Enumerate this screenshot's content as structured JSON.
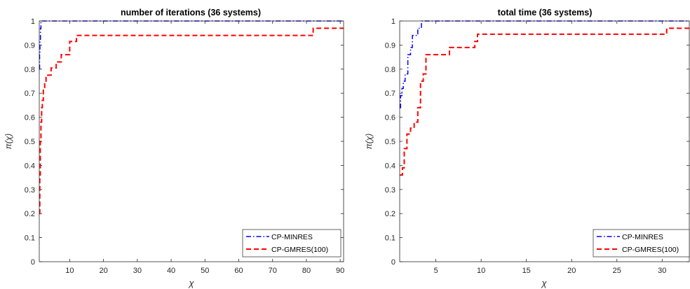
{
  "chart_data": [
    {
      "type": "line",
      "title": "number of iterations (36 systems)",
      "xlabel": "χ",
      "ylabel": "π(χ)",
      "xlim": [
        1,
        91
      ],
      "ylim": [
        0,
        1
      ],
      "xticks": [
        10,
        20,
        30,
        40,
        50,
        60,
        70,
        80,
        90
      ],
      "yticks": [
        0,
        0.1,
        0.2,
        0.3,
        0.4,
        0.5,
        0.6,
        0.7,
        0.8,
        0.9,
        1
      ],
      "grid": false,
      "legend_position": "bottom-right",
      "series": [
        {
          "name": "CP-MINRES",
          "color": "#0000ff",
          "style": "dash-dot",
          "points": [
            [
              1,
              0.8
            ],
            [
              1.1,
              0.86
            ],
            [
              1.2,
              0.92
            ],
            [
              1.35,
              0.97
            ],
            [
              1.5,
              1.0
            ],
            [
              91,
              1.0
            ]
          ]
        },
        {
          "name": "CP-GMRES(100)",
          "color": "#ff0000",
          "style": "dashed",
          "points": [
            [
              1,
              0.2
            ],
            [
              1.15,
              0.36
            ],
            [
              1.3,
              0.5
            ],
            [
              1.5,
              0.58
            ],
            [
              1.7,
              0.64
            ],
            [
              1.9,
              0.67
            ],
            [
              2.2,
              0.72
            ],
            [
              2.6,
              0.75
            ],
            [
              3.0,
              0.775
            ],
            [
              4.5,
              0.805
            ],
            [
              6.0,
              0.83
            ],
            [
              7.5,
              0.86
            ],
            [
              10,
              0.915
            ],
            [
              12,
              0.94
            ],
            [
              82,
              0.97
            ],
            [
              91,
              0.97
            ]
          ]
        }
      ]
    },
    {
      "type": "line",
      "title": "total time (36 systems)",
      "xlabel": "χ",
      "ylabel": "π(χ)",
      "xlim": [
        1,
        33
      ],
      "ylim": [
        0,
        1
      ],
      "xticks": [
        5,
        10,
        15,
        20,
        25,
        30
      ],
      "yticks": [
        0,
        0.1,
        0.2,
        0.3,
        0.4,
        0.5,
        0.6,
        0.7,
        0.8,
        0.9,
        1
      ],
      "grid": false,
      "legend_position": "bottom-right",
      "series": [
        {
          "name": "CP-MINRES",
          "color": "#0000ff",
          "style": "dash-dot",
          "points": [
            [
              1,
              0.64
            ],
            [
              1.1,
              0.69
            ],
            [
              1.25,
              0.72
            ],
            [
              1.4,
              0.75
            ],
            [
              1.6,
              0.78
            ],
            [
              1.9,
              0.86
            ],
            [
              2.2,
              0.89
            ],
            [
              2.4,
              0.94
            ],
            [
              3.0,
              0.97
            ],
            [
              3.4,
              1.0
            ],
            [
              33,
              1.0
            ]
          ]
        },
        {
          "name": "CP-GMRES(100)",
          "color": "#ff0000",
          "style": "dashed",
          "points": [
            [
              1,
              0.36
            ],
            [
              1.3,
              0.39
            ],
            [
              1.5,
              0.47
            ],
            [
              1.8,
              0.53
            ],
            [
              2.2,
              0.555
            ],
            [
              2.6,
              0.58
            ],
            [
              3.0,
              0.64
            ],
            [
              3.3,
              0.75
            ],
            [
              3.6,
              0.78
            ],
            [
              3.9,
              0.86
            ],
            [
              6.5,
              0.89
            ],
            [
              9.3,
              0.915
            ],
            [
              9.6,
              0.945
            ],
            [
              30.5,
              0.97
            ],
            [
              33,
              0.97
            ]
          ]
        }
      ]
    }
  ]
}
